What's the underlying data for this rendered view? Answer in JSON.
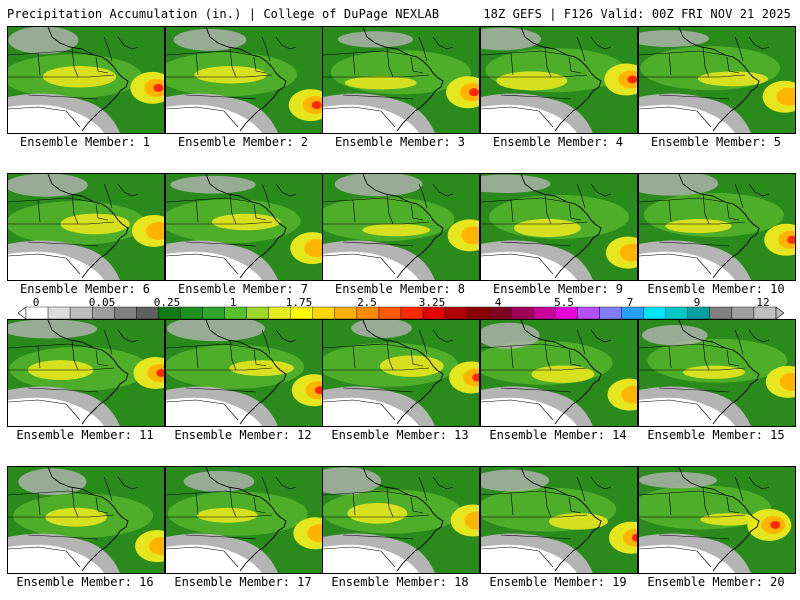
{
  "header": {
    "title": "Precipitation Accumulation (in.) | College of DuPage NEXLAB",
    "run_info": "18Z GEFS | F126 Valid: 00Z FRI NOV 21 2025"
  },
  "panel_labels": [
    "Ensemble Member: 1",
    "Ensemble Member: 2",
    "Ensemble Member: 3",
    "Ensemble Member: 4",
    "Ensemble Member: 5",
    "Ensemble Member: 6",
    "Ensemble Member: 7",
    "Ensemble Member: 8",
    "Ensemble Member: 9",
    "Ensemble Member: 10",
    "Ensemble Member: 11",
    "Ensemble Member: 12",
    "Ensemble Member: 13",
    "Ensemble Member: 14",
    "Ensemble Member: 15",
    "Ensemble Member: 16",
    "Ensemble Member: 17",
    "Ensemble Member: 18",
    "Ensemble Member: 19",
    "Ensemble Member: 20"
  ],
  "colorbar": {
    "labels": [
      "0",
      "0.05",
      "0.25",
      "1",
      "1.75",
      "2.5",
      "3.25",
      "4",
      "5.5",
      "7",
      "9",
      "12"
    ],
    "colors": [
      "#ffffff",
      "#dcdcdc",
      "#bebebe",
      "#9e9e9e",
      "#7f7f7f",
      "#606060",
      "#127a12",
      "#1f8f1f",
      "#2ea62e",
      "#55c12d",
      "#9fd62a",
      "#e5ef1e",
      "#ffff00",
      "#ffd700",
      "#ffb000",
      "#ff8c00",
      "#ff5a00",
      "#ff2a00",
      "#e00000",
      "#b00000",
      "#8a0000",
      "#800020",
      "#a0005a",
      "#c8009a",
      "#e600dc",
      "#b450ff",
      "#7f7fff",
      "#2aa0ff",
      "#00e5ff",
      "#00c8c8",
      "#00a0a0",
      "#808080",
      "#a0a0a0",
      "#c0c0c0"
    ]
  },
  "colors": {
    "no_precip": "#ffffff",
    "light": "#b4b4b4",
    "moderate_green": "#2a8a1c",
    "heavier_green": "#56b42c",
    "yellow": "#e6e61e",
    "orange": "#ffb400",
    "red": "#ff2a00",
    "border_lines": "#000000"
  }
}
